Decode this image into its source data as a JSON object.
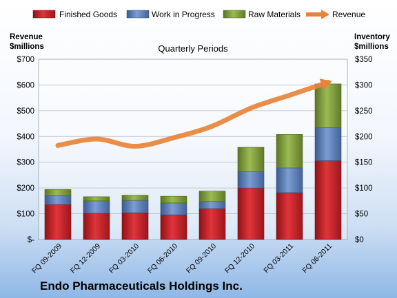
{
  "chart_data": {
    "type": "bar",
    "stacked": true,
    "title": "Quarterly Periods",
    "company": "Endo Pharmaceuticals Holdings Inc.",
    "left_axis_title": [
      "Revenue",
      "$millions"
    ],
    "right_axis_title": [
      "Inventory",
      "$millions"
    ],
    "categories": [
      "FQ 09-2009",
      "FQ 12-2009",
      "FQ 03-2010",
      "FQ 06-2010",
      "FQ 09-2010",
      "FQ 12-2010",
      "FQ 03-2011",
      "FQ 06-2011"
    ],
    "y_left": {
      "min": 0,
      "max": 700,
      "ticks": [
        "$-",
        "$100",
        "$200",
        "$300",
        "$400",
        "$500",
        "$600",
        "$700"
      ]
    },
    "y_right": {
      "min": 0,
      "max": 350,
      "ticks": [
        "$0",
        "$50",
        "$100",
        "$150",
        "$200",
        "$250",
        "$300",
        "$350"
      ]
    },
    "grid": true,
    "legend_position": "top",
    "series": [
      {
        "name": "Finished Goods",
        "axis": "right",
        "color": "#c0272d",
        "values": [
          68,
          51,
          52,
          48,
          60,
          100,
          91,
          153
        ]
      },
      {
        "name": "Work in Progress",
        "axis": "right",
        "color": "#5b7fb8",
        "values": [
          17,
          24,
          24,
          23,
          14,
          32,
          48,
          64
        ]
      },
      {
        "name": "Raw Materials",
        "axis": "right",
        "color": "#7d9b3c",
        "values": [
          12,
          8,
          10,
          13,
          20,
          47,
          65,
          85
        ]
      },
      {
        "name": "Revenue",
        "axis": "left",
        "type": "line",
        "color": "#e8833a",
        "values": [
          365,
          390,
          362,
          395,
          440,
          510,
          560,
          610
        ]
      }
    ]
  }
}
